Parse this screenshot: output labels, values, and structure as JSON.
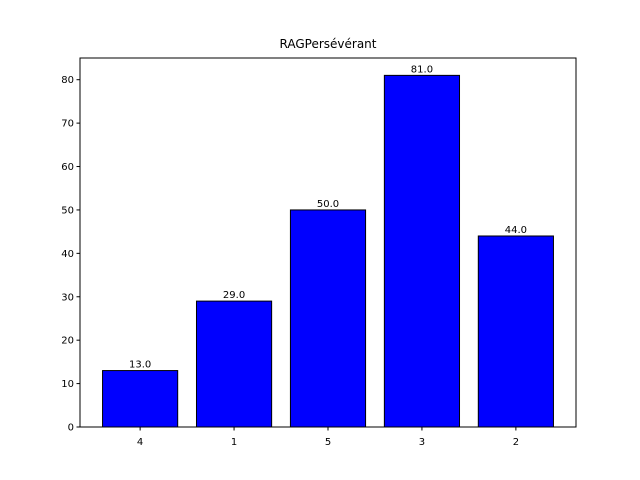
{
  "chart_data": {
    "type": "bar",
    "title": "RAGPersévérant",
    "xlabel": "",
    "ylabel": "",
    "categories": [
      "4",
      "1",
      "5",
      "3",
      "2"
    ],
    "values": [
      13.0,
      29.0,
      50.0,
      81.0,
      44.0
    ],
    "data_labels": [
      "13.0",
      "29.0",
      "50.0",
      "81.0",
      "44.0"
    ],
    "ylim": [
      0,
      85
    ],
    "yticks": [
      0,
      10,
      20,
      30,
      40,
      50,
      60,
      70,
      80
    ],
    "bar_color": "#0000ff",
    "edge_color": "#000000",
    "grid": false
  }
}
